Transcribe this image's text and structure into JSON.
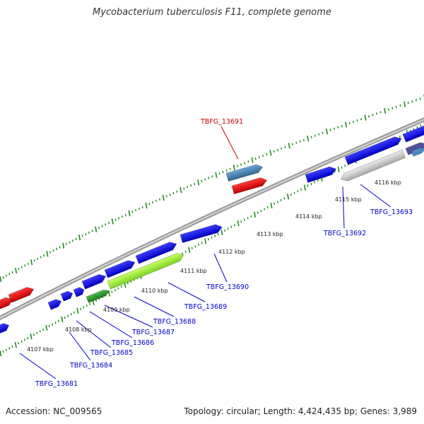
{
  "title": "Mycobacterium tuberculosis F11, complete genome",
  "footer": {
    "accession": "Accession: NC_009565",
    "summary": "Topology: circular; Length: 4,424,435 bp; Genes: 3,989"
  },
  "ticks": [
    "4107 kbp",
    "4108 kbp",
    "4109 kbp",
    "4110 kbp",
    "4111 kbp",
    "4112 kbp",
    "4113 kbp",
    "4114 kbp",
    "4115 kbp",
    "4116 kbp"
  ],
  "genes": [
    {
      "name": "TBFG_13681",
      "color": "#0000cc"
    },
    {
      "name": "TBFG_13684",
      "color": "#0000cc"
    },
    {
      "name": "TBFG_13685",
      "color": "#0000cc"
    },
    {
      "name": "TBFG_13686",
      "color": "#0000cc"
    },
    {
      "name": "TBFG_13687",
      "color": "#0000cc"
    },
    {
      "name": "TBFG_13688",
      "color": "#0000cc"
    },
    {
      "name": "TBFG_13689",
      "color": "#0000cc"
    },
    {
      "name": "TBFG_13690",
      "color": "#0000cc"
    },
    {
      "name": "TBFG_13691",
      "color": "#cc0000"
    },
    {
      "name": "TBFG_13692",
      "color": "#0000cc"
    },
    {
      "name": "TBFG_13693",
      "color": "#0000cc"
    }
  ],
  "colors": {
    "backbone": "#8c8c8c",
    "cds_forward": "#1010e0",
    "cds_reverse": "#e01010",
    "rna_green": "#99ee33",
    "dark_green": "#2a9a2a",
    "steel_blue": "#4682b4",
    "pseudo_grey": "#c8c8c8",
    "dots": "#1f8a1f"
  }
}
